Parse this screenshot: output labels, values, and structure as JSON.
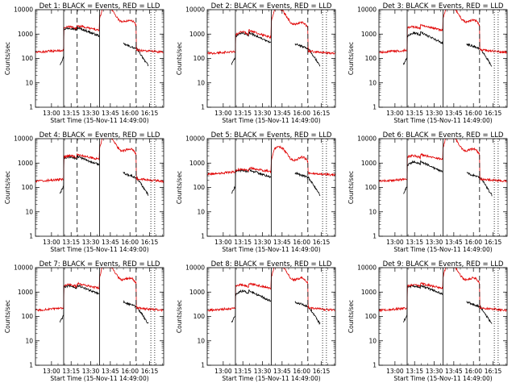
{
  "figure": {
    "background": "#ffffff",
    "colors": {
      "events": "#000000",
      "lld": "#e00000"
    }
  },
  "chart_data": [
    {
      "type": "line",
      "title": "Det 1: BLACK = Events, RED = LLD",
      "xlabel": "Start Time (15-Nov-11 14:49:00)",
      "ylabel": "Counts/sec",
      "y_scale": "log",
      "ylim": [
        1,
        10000
      ],
      "x_ticks": [
        "13:00",
        "13:15",
        "13:30",
        "13:45",
        "16:00",
        "16:15"
      ],
      "y_ticks": [
        "1",
        "10",
        "100",
        "1000",
        "10000"
      ],
      "markers": {
        "solid": [
          0.22,
          0.5
        ],
        "dashed": [
          0.325,
          0.785
        ],
        "dotted": [
          0.9,
          0.93
        ]
      },
      "series": [
        {
          "name": "BLACK = Events",
          "profile": "high"
        },
        {
          "name": "RED = LLD",
          "profile": "high"
        }
      ]
    },
    {
      "type": "line",
      "title": "Det 2: BLACK = Events, RED = LLD",
      "xlabel": "Start Time (15-Nov-11 14:49:00)",
      "ylabel": "Counts/sec",
      "y_scale": "log",
      "ylim": [
        1,
        10000
      ],
      "x_ticks": [
        "13:00",
        "13:15",
        "13:30",
        "13:45",
        "16:00",
        "16:15"
      ],
      "y_ticks": [
        "1",
        "10",
        "100",
        "1000",
        "10000"
      ],
      "markers": {
        "solid": [
          0.22,
          0.5
        ],
        "dashed": [
          0.785
        ],
        "dotted": [
          0.9,
          0.93
        ]
      },
      "series": [
        {
          "name": "BLACK = Events",
          "profile": "med"
        },
        {
          "name": "RED = LLD",
          "profile": "med"
        }
      ]
    },
    {
      "type": "line",
      "title": "Det 3: BLACK = Events, RED = LLD",
      "xlabel": "Start Time (15-Nov-11 14:49:00)",
      "ylabel": "Counts/sec",
      "y_scale": "log",
      "ylim": [
        1,
        10000
      ],
      "x_ticks": [
        "13:00",
        "13:15",
        "13:30",
        "13:45",
        "16:00",
        "16:15"
      ],
      "y_ticks": [
        "1",
        "10",
        "100",
        "1000",
        "10000"
      ],
      "markers": {
        "solid": [
          0.22,
          0.5
        ],
        "dashed": [
          0.785
        ],
        "dotted": [
          0.9,
          0.93
        ]
      },
      "series": [
        {
          "name": "BLACK = Events",
          "profile": "med"
        },
        {
          "name": "RED = LLD",
          "profile": "high"
        }
      ]
    },
    {
      "type": "line",
      "title": "Det 4: BLACK = Events, RED = LLD",
      "xlabel": "Start Time (15-Nov-11 14:49:00)",
      "ylabel": "Counts/sec",
      "y_scale": "log",
      "ylim": [
        1,
        10000
      ],
      "x_ticks": [
        "13:00",
        "13:15",
        "13:30",
        "13:45",
        "16:00",
        "16:15"
      ],
      "y_ticks": [
        "1",
        "10",
        "100",
        "1000",
        "10000"
      ],
      "markers": {
        "solid": [
          0.22,
          0.5
        ],
        "dashed": [
          0.325,
          0.785
        ],
        "dotted": [
          0.9,
          0.93
        ]
      },
      "series": [
        {
          "name": "BLACK = Events",
          "profile": "high"
        },
        {
          "name": "RED = LLD",
          "profile": "high"
        }
      ]
    },
    {
      "type": "line",
      "title": "Det 5: BLACK = Events, RED = LLD",
      "xlabel": "Start Time (15-Nov-11 14:49:00)",
      "ylabel": "Counts/sec",
      "y_scale": "log",
      "ylim": [
        1,
        10000
      ],
      "x_ticks": [
        "13:00",
        "13:15",
        "13:30",
        "13:45",
        "16:00",
        "16:15"
      ],
      "y_ticks": [
        "1",
        "10",
        "100",
        "1000",
        "10000"
      ],
      "markers": {
        "solid": [
          0.22,
          0.5
        ],
        "dashed": [
          0.785
        ],
        "dotted": [
          0.9,
          0.93
        ]
      },
      "series": [
        {
          "name": "BLACK = Events",
          "profile": "low"
        },
        {
          "name": "RED = LLD",
          "profile": "low"
        }
      ]
    },
    {
      "type": "line",
      "title": "Det 6: BLACK = Events, RED = LLD",
      "xlabel": "Start Time (15-Nov-11 14:49:00)",
      "ylabel": "Counts/sec",
      "y_scale": "log",
      "ylim": [
        1,
        10000
      ],
      "x_ticks": [
        "13:00",
        "13:15",
        "13:30",
        "13:45",
        "16:00",
        "16:15"
      ],
      "y_ticks": [
        "1",
        "10",
        "100",
        "1000",
        "10000"
      ],
      "markers": {
        "solid": [
          0.22,
          0.5
        ],
        "dashed": [
          0.785
        ],
        "dotted": [
          0.9,
          0.93
        ]
      },
      "series": [
        {
          "name": "BLACK = Events",
          "profile": "med"
        },
        {
          "name": "RED = LLD",
          "profile": "high"
        }
      ]
    },
    {
      "type": "line",
      "title": "Det 7: BLACK = Events, RED = LLD",
      "xlabel": "Start Time (15-Nov-11 14:49:00)",
      "ylabel": "Counts/sec",
      "y_scale": "log",
      "ylim": [
        1,
        10000
      ],
      "x_ticks": [
        "13:00",
        "13:15",
        "13:30",
        "13:45",
        "16:00",
        "16:15"
      ],
      "y_ticks": [
        "1",
        "10",
        "100",
        "1000",
        "10000"
      ],
      "markers": {
        "solid": [
          0.22,
          0.5
        ],
        "dashed": [
          0.785
        ],
        "dotted": [
          0.9,
          0.93
        ]
      },
      "series": [
        {
          "name": "BLACK = Events",
          "profile": "high"
        },
        {
          "name": "RED = LLD",
          "profile": "high"
        }
      ]
    },
    {
      "type": "line",
      "title": "Det 8: BLACK = Events, RED = LLD",
      "xlabel": "Start Time (15-Nov-11 14:49:00)",
      "ylabel": "Counts/sec",
      "y_scale": "log",
      "ylim": [
        1,
        10000
      ],
      "x_ticks": [
        "13:00",
        "13:15",
        "13:30",
        "13:45",
        "16:00",
        "16:15"
      ],
      "y_ticks": [
        "1",
        "10",
        "100",
        "1000",
        "10000"
      ],
      "markers": {
        "solid": [
          0.22,
          0.5
        ],
        "dashed": [
          0.785
        ],
        "dotted": [
          0.9,
          0.93
        ]
      },
      "series": [
        {
          "name": "BLACK = Events",
          "profile": "med"
        },
        {
          "name": "RED = LLD",
          "profile": "high"
        }
      ]
    },
    {
      "type": "line",
      "title": "Det 9: BLACK = Events, RED = LLD",
      "xlabel": "Start Time (15-Nov-11 14:49:00)",
      "ylabel": "Counts/sec",
      "y_scale": "log",
      "ylim": [
        1,
        10000
      ],
      "x_ticks": [
        "13:00",
        "13:15",
        "13:30",
        "13:45",
        "16:00",
        "16:15"
      ],
      "y_ticks": [
        "1",
        "10",
        "100",
        "1000",
        "10000"
      ],
      "markers": {
        "solid": [
          0.22,
          0.5
        ],
        "dashed": [
          0.785
        ],
        "dotted": [
          0.9,
          0.93
        ]
      },
      "series": [
        {
          "name": "BLACK = Events",
          "profile": "high"
        },
        {
          "name": "RED = LLD",
          "profile": "high"
        }
      ]
    }
  ]
}
